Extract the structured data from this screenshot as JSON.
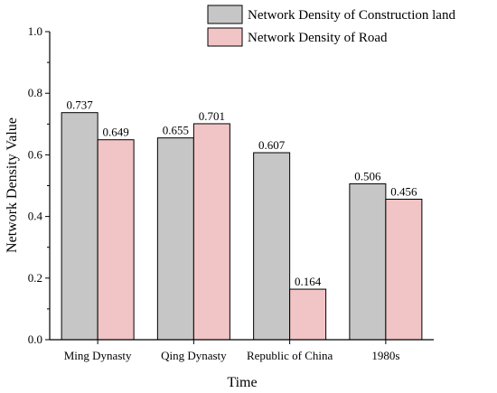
{
  "chart_data": {
    "type": "bar",
    "categories": [
      "Ming Dynasty",
      "Qing Dynasty",
      "Republic of China",
      "1980s"
    ],
    "series": [
      {
        "name": "Network Density of Construction land",
        "values": [
          0.737,
          0.655,
          0.607,
          0.506
        ],
        "color": "#c6c6c6"
      },
      {
        "name": "Network Density of Road",
        "values": [
          0.649,
          0.701,
          0.164,
          0.456
        ],
        "color": "#f1c4c6"
      }
    ],
    "value_labels": [
      [
        "0.737",
        "0.655",
        "0.607",
        "0.506"
      ],
      [
        "0.649",
        "0.701",
        "0.164",
        "0.456"
      ]
    ],
    "xlabel": "Time",
    "ylabel": "Network Density Value",
    "ylim": [
      0.0,
      1.0
    ],
    "yticks": [
      0.0,
      0.2,
      0.4,
      0.6,
      0.8,
      1.0
    ],
    "ytick_labels": [
      "0.0",
      "0.2",
      "0.4",
      "0.6",
      "0.8",
      "1.0"
    ],
    "grid": false,
    "legend_position": "top-right"
  }
}
